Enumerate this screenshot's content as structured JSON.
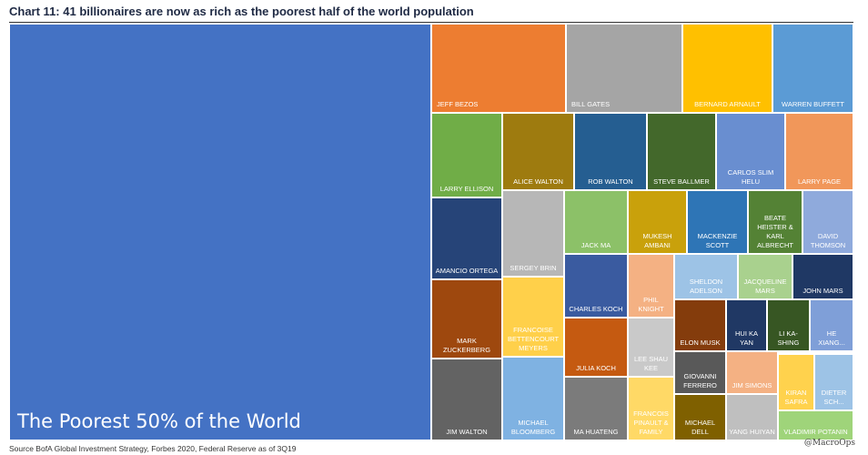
{
  "title": "Chart 11: 41 billionaires are now as rich as the poorest half of the world population",
  "source": "Source BofA Global Investment Strategy, Forbes 2020, Federal Reserve as of 3Q19",
  "handle": "@MacroOps",
  "chart_data": {
    "type": "treemap",
    "title": "Chart 11: 41 billionaires are now as rich as the poorest half of the world population",
    "cells": [
      {
        "name": "The Poorest 50% of the World",
        "color": "#4472c4"
      },
      {
        "name": "JEFF BEZOS",
        "color": "#ed7d31"
      },
      {
        "name": "BILL GATES",
        "color": "#a5a5a5"
      },
      {
        "name": "BERNARD ARNAULT",
        "color": "#ffc000"
      },
      {
        "name": "WARREN BUFFETT",
        "color": "#5b9bd5"
      },
      {
        "name": "LARRY ELLISON",
        "color": "#70ad47"
      },
      {
        "name": "ALICE WALTON",
        "color": "#9e7b0f"
      },
      {
        "name": "ROB WALTON",
        "color": "#255e91"
      },
      {
        "name": "STEVE BALLMER",
        "color": "#43682b"
      },
      {
        "name": "CARLOS SLIM HELU",
        "color": "#698ed0"
      },
      {
        "name": "LARRY PAGE",
        "color": "#f1975a"
      },
      {
        "name": "AMANCIO ORTEGA",
        "color": "#264478"
      },
      {
        "name": "SERGEY BRIN",
        "color": "#b7b7b7"
      },
      {
        "name": "JACK MA",
        "color": "#8cc168"
      },
      {
        "name": "MUKESH AMBANI",
        "color": "#c9a10b"
      },
      {
        "name": "MACKENZIE SCOTT",
        "color": "#2e75b6"
      },
      {
        "name": "BEATE HEISTER & KARL ALBRECHT",
        "color": "#548235"
      },
      {
        "name": "DAVID THOMSON",
        "color": "#8faadc"
      },
      {
        "name": "MARK ZUCKERBERG",
        "color": "#9e480e"
      },
      {
        "name": "FRANCOISE BETTENCOURT MEYERS",
        "color": "#ffd04a"
      },
      {
        "name": "CHARLES KOCH",
        "color": "#3a5ba0"
      },
      {
        "name": "PHIL KNIGHT",
        "color": "#f4b183"
      },
      {
        "name": "SHELDON ADELSON",
        "color": "#9dc3e6"
      },
      {
        "name": "JACQUELINE MARS",
        "color": "#a9d18e"
      },
      {
        "name": "JOHN MARS",
        "color": "#1f3864"
      },
      {
        "name": "ELON MUSK",
        "color": "#843c0c"
      },
      {
        "name": "HUI KA YAN",
        "color": "#203864"
      },
      {
        "name": "LI KA-SHING",
        "color": "#375623"
      },
      {
        "name": "HE XIANG...",
        "color": "#7f9fd8"
      },
      {
        "name": "JULIA KOCH",
        "color": "#c55a11"
      },
      {
        "name": "LEE SHAU KEE",
        "color": "#c9c9c9"
      },
      {
        "name": "GIOVANNI FERRERO",
        "color": "#595959"
      },
      {
        "name": "JIM SIMONS",
        "color": "#f4b183"
      },
      {
        "name": "JIM WALTON",
        "color": "#636363"
      },
      {
        "name": "MICHAEL BLOOMBERG",
        "color": "#7fb2e2"
      },
      {
        "name": "MA HUATENG",
        "color": "#7b7b7b"
      },
      {
        "name": "FRANCOIS PINAULT & FAMILY",
        "color": "#ffd966"
      },
      {
        "name": "MICHAEL DELL",
        "color": "#7f6000"
      },
      {
        "name": "YANG HUIYAN",
        "color": "#bfbfbf"
      },
      {
        "name": "KIRAN SAFRA",
        "color": "#ffd24d"
      },
      {
        "name": "DIETER SCH...",
        "color": "#9dc3e6"
      },
      {
        "name": "VLADIMIR POTANIN",
        "color": "#9fd47a"
      }
    ]
  }
}
